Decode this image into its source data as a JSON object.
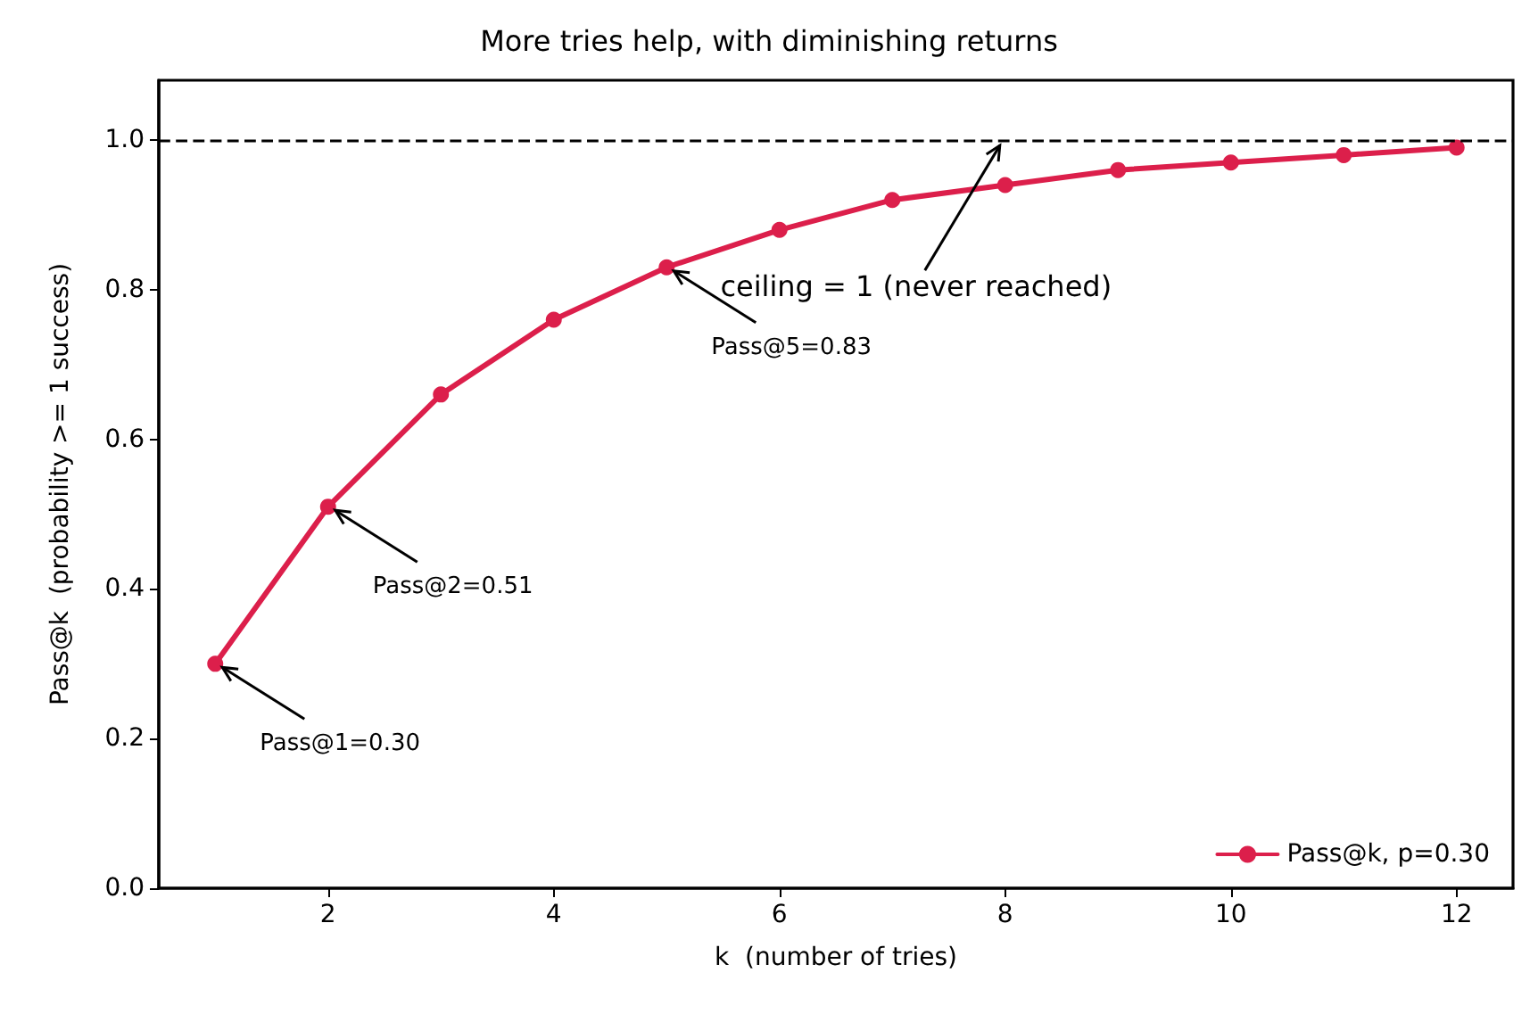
{
  "chart_data": {
    "type": "line",
    "title": "More tries help, with diminishing returns",
    "xlabel": "k  (number of tries)",
    "ylabel": "Pass@k  (probability >= 1 success)",
    "x": [
      1,
      2,
      3,
      4,
      5,
      6,
      7,
      8,
      9,
      10,
      11,
      12
    ],
    "series": [
      {
        "name": "Pass@k, p=0.30",
        "color": "#dc1f4b",
        "values": [
          0.3,
          0.51,
          0.66,
          0.76,
          0.83,
          0.88,
          0.92,
          0.94,
          0.96,
          0.97,
          0.98,
          0.99
        ]
      }
    ],
    "xlim": [
      0.5,
      12.5
    ],
    "xticks": [
      2,
      4,
      6,
      8,
      10,
      12
    ],
    "ylim": [
      0,
      1.08
    ],
    "yticks": [
      {
        "value": 0,
        "label": "0.0"
      },
      0.2,
      0.4,
      0.6,
      0.8,
      {
        "value": 1,
        "label": "1.0"
      }
    ],
    "ref_lines": [
      {
        "axis": "y",
        "value": 1.0,
        "color": "#000000",
        "line_style": "dashed"
      }
    ],
    "annotations": [
      {
        "text": "Pass@1=0.30",
        "x": 1,
        "y": 0.3
      },
      {
        "text": "Pass@2=0.51",
        "x": 2,
        "y": 0.51
      },
      {
        "text": "Pass@5=0.83",
        "x": 5,
        "y": 0.83
      },
      {
        "text": "ceiling = 1 (never reached)",
        "x": 8,
        "y": 1.0
      }
    ],
    "grid": false,
    "legend": "bottom right",
    "marker": "circle",
    "line_style": "solid"
  }
}
